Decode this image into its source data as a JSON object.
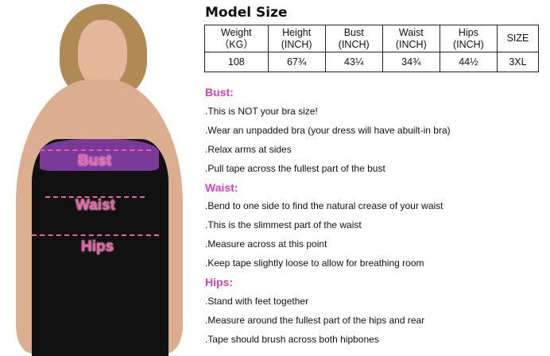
{
  "title": "Model Size",
  "table": {
    "headers": [
      [
        "Weight",
        "（KG）"
      ],
      [
        "Height",
        "(INCH)"
      ],
      [
        "Bust",
        "(INCH)"
      ],
      [
        "Waist",
        "(INCH)"
      ],
      [
        "Hips",
        "(INCH)"
      ],
      [
        "SIZE",
        ""
      ]
    ],
    "values": [
      "108",
      "67¾",
      "43¼",
      "34¾",
      "44½",
      "3XL"
    ]
  },
  "sections": [
    {
      "heading": "Bust:",
      "items": [
        ".This is NOT your bra size!",
        ".Wear an unpadded bra (your dress will have abuilt-in bra)",
        ".Relax arms at sides",
        ".Pull tape across the fullest part of the bust"
      ]
    },
    {
      "heading": "Waist:",
      "items": [
        ".Bend to one side to find the natural crease of your waist",
        ".This is the slimmest part of the waist",
        ".Measure across at this point",
        ".Keep tape slightly loose to allow for breathing room"
      ]
    },
    {
      "heading": "Hips:",
      "items": [
        ".Stand with feet together",
        ".Measure around the fullest part of the hips and rear",
        ".Tape should brush across both hipbones"
      ]
    }
  ],
  "figure": {
    "labels": [
      "Bust",
      "Waist",
      "Hips"
    ]
  },
  "colors": {
    "heading": "#e03cc4",
    "measure": "#f25aa8",
    "dress": "#111111",
    "bra": "#7a3a9a"
  }
}
